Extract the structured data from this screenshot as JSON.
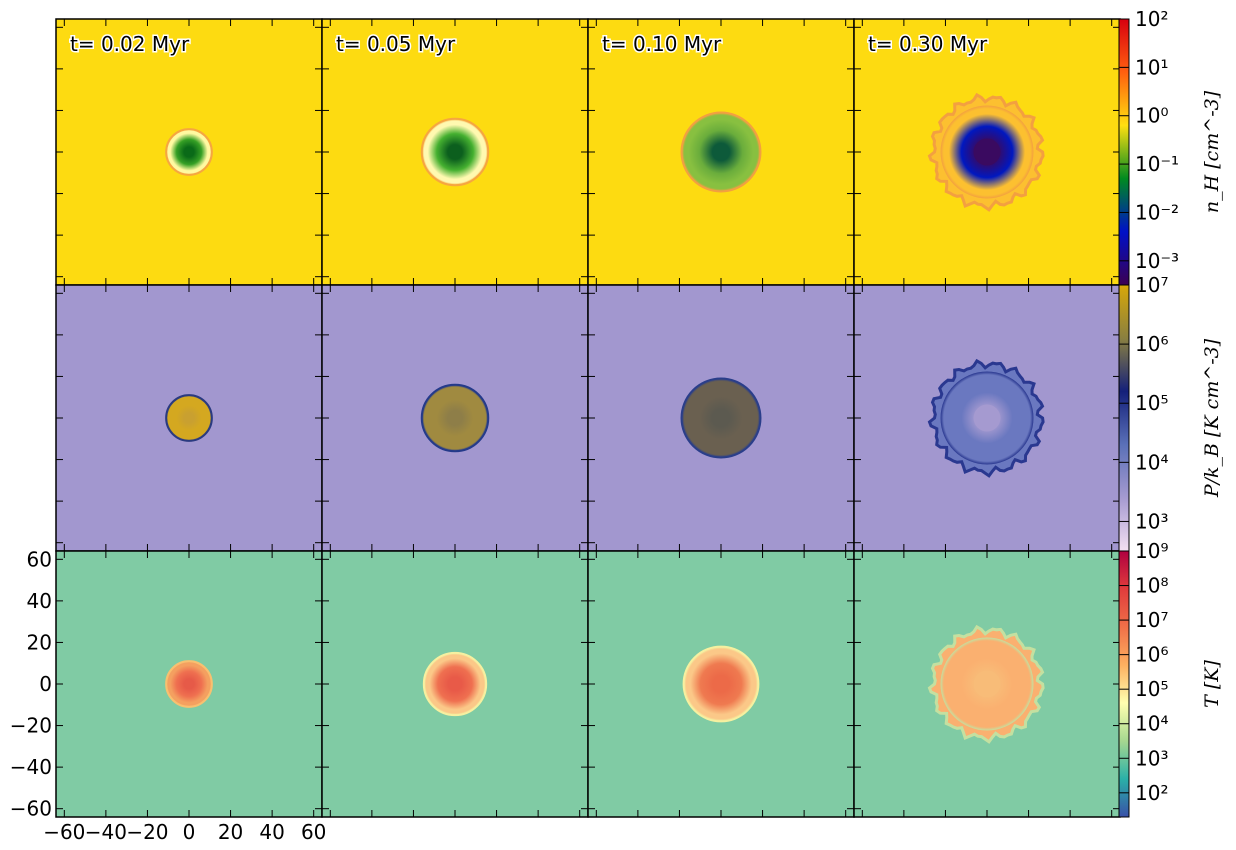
{
  "chart_data": {
    "type": "heatmap",
    "layout": {
      "rows": 3,
      "cols": 4,
      "shared_axes": true
    },
    "time_labels": [
      "t= 0.02 Myr",
      "t= 0.05 Myr",
      "t= 0.10 Myr",
      "t= 0.30 Myr"
    ],
    "axes": {
      "xlim": [
        -64,
        64
      ],
      "ylim": [
        -64,
        64
      ],
      "x_ticks": [
        -60,
        -40,
        -20,
        0,
        20,
        40,
        60
      ],
      "y_ticks": [
        60,
        40,
        20,
        0,
        -20,
        -40,
        -60
      ],
      "x_tick_labels": [
        "−60",
        "−40",
        "−20",
        "0",
        "20",
        "40",
        "60"
      ],
      "y_tick_labels": [
        "60",
        "40",
        "20",
        "0",
        "−20",
        "−40",
        "−60"
      ]
    },
    "rows": [
      {
        "quantity": "density",
        "colorbar_label": "n_H [cm^-3]",
        "colorbar_label_html": "n_H[cm^-3]",
        "log_range": [
          -3.5,
          2
        ],
        "tick_exponents": [
          -3,
          -2,
          -1,
          0,
          1,
          2
        ],
        "tick_labels": [
          "10⁻³",
          "10⁻²",
          "10⁻¹",
          "10⁰",
          "10¹",
          "10²"
        ],
        "colors": [
          "#3b0052",
          "#0010c8",
          "#008a20",
          "#ffe010",
          "#ff6010",
          "#d80010"
        ],
        "background": "#fddb11",
        "bubbles": [
          {
            "radius": 11,
            "rim": "#f6a640",
            "halo": "#fff9a0",
            "shell": "#36a025",
            "core": "#0a6a18"
          },
          {
            "radius": 16,
            "rim": "#f6a640",
            "halo": "#fff9b0",
            "shell": "#45b030",
            "core": "#0c5f1e"
          },
          {
            "radius": 19,
            "rim": "#f3a040",
            "halo": "#88c040",
            "shell": "#6aad3c",
            "core": "#0d5a3a"
          },
          {
            "radius": 26,
            "rim": "#f3a040",
            "halo": "#fcc030",
            "shell": "#0018c0",
            "core": "#3a0a60"
          }
        ]
      },
      {
        "quantity": "pressure",
        "colorbar_label": "P/k_B [K cm^-3]",
        "colorbar_label_html": "P/k_B[Kcm^-3]",
        "log_range": [
          2.5,
          7
        ],
        "tick_exponents": [
          3,
          4,
          5,
          6,
          7
        ],
        "tick_labels": [
          "10³",
          "10⁴",
          "10⁵",
          "10⁶",
          "10⁷"
        ],
        "colors": [
          "#f4e0f2",
          "#a59ad0",
          "#5a70b8",
          "#14207a",
          "#8a8040",
          "#d8a808"
        ],
        "background": "#a297cf",
        "bubbles": [
          {
            "radius": 11,
            "rim": "#2a3a80",
            "halo": "#d4a820",
            "shell": "#d4a820",
            "core": "#c9a030"
          },
          {
            "radius": 16,
            "rim": "#243a8a",
            "halo": "#a08a40",
            "shell": "#a08a40",
            "core": "#8e7e48"
          },
          {
            "radius": 19,
            "rim": "#2a3e8a",
            "halo": "#6a6050",
            "shell": "#6a6050",
            "core": "#5c5a50"
          },
          {
            "radius": 26,
            "rim": "#2a3890",
            "halo": "#6a78c0",
            "shell": "#6a78c0",
            "core": "#a59ad0"
          }
        ]
      },
      {
        "quantity": "temperature",
        "colorbar_label": "T [K]",
        "colorbar_label_html": "T[K]",
        "log_range": [
          1.3,
          9
        ],
        "tick_exponents": [
          2,
          3,
          4,
          5,
          6,
          7,
          8,
          9
        ],
        "tick_labels": [
          "10²",
          "10³",
          "10⁴",
          "10⁵",
          "10⁶",
          "10⁷",
          "10⁸",
          "10⁹"
        ],
        "colors": [
          "#3850a8",
          "#2ab0a8",
          "#a6d890",
          "#ffffb0",
          "#fdb060",
          "#f07048",
          "#e03c3c",
          "#b00040"
        ],
        "background": "#80cba4",
        "bubbles": [
          {
            "radius": 11,
            "rim": "#f8c070",
            "halo": "#f4a060",
            "shell": "#ef7050",
            "core": "#e65a48"
          },
          {
            "radius": 15,
            "rim": "#f6f0a0",
            "halo": "#fbc888",
            "shell": "#ef7050",
            "core": "#e85a48"
          },
          {
            "radius": 18,
            "rim": "#f6f0a0",
            "halo": "#fbc888",
            "shell": "#ef7a50",
            "core": "#ec6a48"
          },
          {
            "radius": 26,
            "rim": "#c4e0a0",
            "halo": "#fab070",
            "shell": "#fab070",
            "core": "#f8bc78"
          }
        ]
      }
    ]
  }
}
